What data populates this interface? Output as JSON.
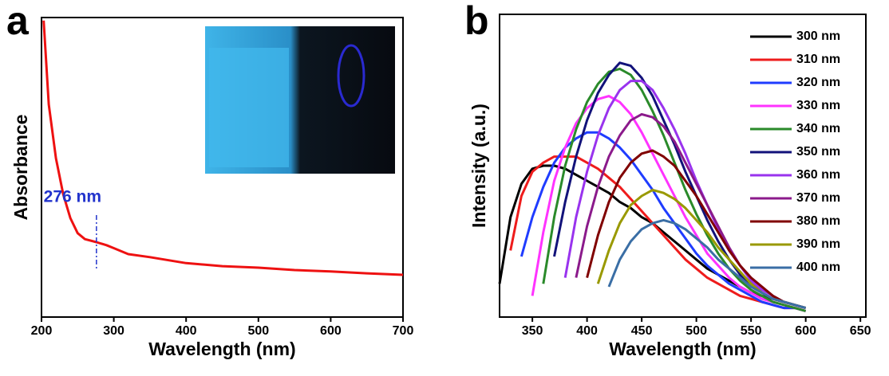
{
  "chart_data": [
    {
      "type": "line",
      "panel_label": "a",
      "x_label": "Wavelength (nm)",
      "y_label": "Absorbance",
      "x": [
        203,
        210,
        220,
        230,
        240,
        250,
        260,
        276,
        290,
        300,
        320,
        350,
        400,
        450,
        500,
        550,
        600,
        650,
        700
      ],
      "values": [
        0.99,
        0.71,
        0.53,
        0.41,
        0.33,
        0.28,
        0.26,
        0.25,
        0.24,
        0.23,
        0.21,
        0.2,
        0.18,
        0.17,
        0.165,
        0.157,
        0.152,
        0.146,
        0.141
      ],
      "color": "#ee1111",
      "xlim": [
        200,
        700
      ],
      "xticks": [
        200,
        300,
        400,
        500,
        600,
        700
      ],
      "ylim": [
        0,
        1
      ],
      "annotation": {
        "text": "276 nm",
        "x": 276
      }
    },
    {
      "type": "line",
      "panel_label": "b",
      "x_label": "Wavelength (nm)",
      "y_label": "Intensity (a.u.)",
      "x": [
        320,
        330,
        340,
        350,
        360,
        370,
        380,
        390,
        400,
        410,
        420,
        430,
        440,
        450,
        460,
        470,
        480,
        490,
        500,
        510,
        520,
        530,
        540,
        550,
        560,
        570,
        580,
        590,
        600
      ],
      "series": [
        {
          "name": "300 nm",
          "color": "#000000",
          "values": [
            0.11,
            0.33,
            0.44,
            0.49,
            0.5,
            0.5,
            0.49,
            0.47,
            0.45,
            0.43,
            0.41,
            0.38,
            0.36,
            0.33,
            0.31,
            0.28,
            0.25,
            0.22,
            0.19,
            0.16,
            0.14,
            0.12,
            0.1,
            0.08,
            0.07,
            0.06,
            0.05,
            0.04,
            0.03
          ]
        },
        {
          "name": "310 nm",
          "color": "#ee1c1c",
          "values": [
            null,
            0.22,
            0.4,
            0.48,
            0.51,
            0.53,
            0.53,
            0.53,
            0.51,
            0.49,
            0.46,
            0.43,
            0.39,
            0.35,
            0.31,
            0.27,
            0.23,
            0.19,
            0.16,
            0.13,
            0.11,
            0.09,
            0.07,
            0.06,
            0.05,
            0.04,
            0.03,
            0.03,
            0.02
          ]
        },
        {
          "name": "320 nm",
          "color": "#1f3cff",
          "values": [
            null,
            null,
            0.2,
            0.33,
            0.43,
            0.51,
            0.56,
            0.59,
            0.61,
            0.61,
            0.59,
            0.56,
            0.52,
            0.47,
            0.42,
            0.36,
            0.31,
            0.26,
            0.21,
            0.17,
            0.14,
            0.11,
            0.09,
            0.07,
            0.05,
            0.04,
            0.03,
            0.03,
            0.02
          ]
        },
        {
          "name": "330 nm",
          "color": "#ff33ff",
          "values": [
            null,
            null,
            null,
            0.07,
            0.28,
            0.45,
            0.56,
            0.64,
            0.69,
            0.72,
            0.73,
            0.71,
            0.67,
            0.61,
            0.54,
            0.47,
            0.4,
            0.33,
            0.27,
            0.21,
            0.17,
            0.13,
            0.1,
            0.08,
            0.06,
            0.05,
            0.04,
            0.03,
            0.02
          ]
        },
        {
          "name": "340 nm",
          "color": "#2a8a2a",
          "values": [
            null,
            null,
            null,
            null,
            0.11,
            0.33,
            0.5,
            0.62,
            0.71,
            0.77,
            0.81,
            0.82,
            0.8,
            0.75,
            0.68,
            0.6,
            0.51,
            0.42,
            0.34,
            0.27,
            0.21,
            0.16,
            0.12,
            0.09,
            0.07,
            0.05,
            0.04,
            0.03,
            0.02
          ]
        },
        {
          "name": "350 nm",
          "color": "#12127a",
          "values": [
            null,
            null,
            null,
            null,
            null,
            0.2,
            0.38,
            0.53,
            0.65,
            0.74,
            0.8,
            0.84,
            0.83,
            0.79,
            0.73,
            0.65,
            0.57,
            0.48,
            0.4,
            0.32,
            0.25,
            0.19,
            0.14,
            0.11,
            0.08,
            0.06,
            0.05,
            0.04,
            0.03
          ]
        },
        {
          "name": "360 nm",
          "color": "#9933ee",
          "values": [
            null,
            null,
            null,
            null,
            null,
            null,
            0.13,
            0.33,
            0.48,
            0.6,
            0.69,
            0.75,
            0.78,
            0.78,
            0.75,
            0.69,
            0.62,
            0.54,
            0.45,
            0.37,
            0.29,
            0.22,
            0.17,
            0.12,
            0.09,
            0.07,
            0.05,
            0.04,
            0.03
          ]
        },
        {
          "name": "370 nm",
          "color": "#8b1a8b",
          "values": [
            null,
            null,
            null,
            null,
            null,
            null,
            null,
            0.13,
            0.3,
            0.43,
            0.53,
            0.6,
            0.65,
            0.67,
            0.66,
            0.63,
            0.58,
            0.51,
            0.44,
            0.37,
            0.3,
            0.23,
            0.17,
            0.13,
            0.1,
            0.07,
            0.05,
            0.04,
            0.03
          ]
        },
        {
          "name": "380 nm",
          "color": "#800000",
          "values": [
            null,
            null,
            null,
            null,
            null,
            null,
            null,
            null,
            0.13,
            0.27,
            0.38,
            0.46,
            0.51,
            0.54,
            0.55,
            0.53,
            0.5,
            0.45,
            0.4,
            0.34,
            0.28,
            0.22,
            0.17,
            0.13,
            0.1,
            0.07,
            0.05,
            0.04,
            0.03
          ]
        },
        {
          "name": "390 nm",
          "color": "#999900",
          "values": [
            null,
            null,
            null,
            null,
            null,
            null,
            null,
            null,
            null,
            0.11,
            0.22,
            0.31,
            0.37,
            0.4,
            0.42,
            0.41,
            0.39,
            0.36,
            0.32,
            0.28,
            0.23,
            0.19,
            0.15,
            0.11,
            0.08,
            0.06,
            0.05,
            0.04,
            0.03
          ]
        },
        {
          "name": "400 nm",
          "color": "#3a6ea5",
          "values": [
            null,
            null,
            null,
            null,
            null,
            null,
            null,
            null,
            null,
            null,
            0.1,
            0.19,
            0.25,
            0.29,
            0.31,
            0.32,
            0.31,
            0.29,
            0.26,
            0.23,
            0.19,
            0.16,
            0.13,
            0.1,
            0.08,
            0.06,
            0.05,
            0.04,
            0.03
          ]
        }
      ],
      "xlim": [
        320,
        655
      ],
      "xticks": [
        350,
        400,
        450,
        500,
        550,
        600,
        650
      ],
      "ylim": [
        0,
        1
      ]
    }
  ]
}
